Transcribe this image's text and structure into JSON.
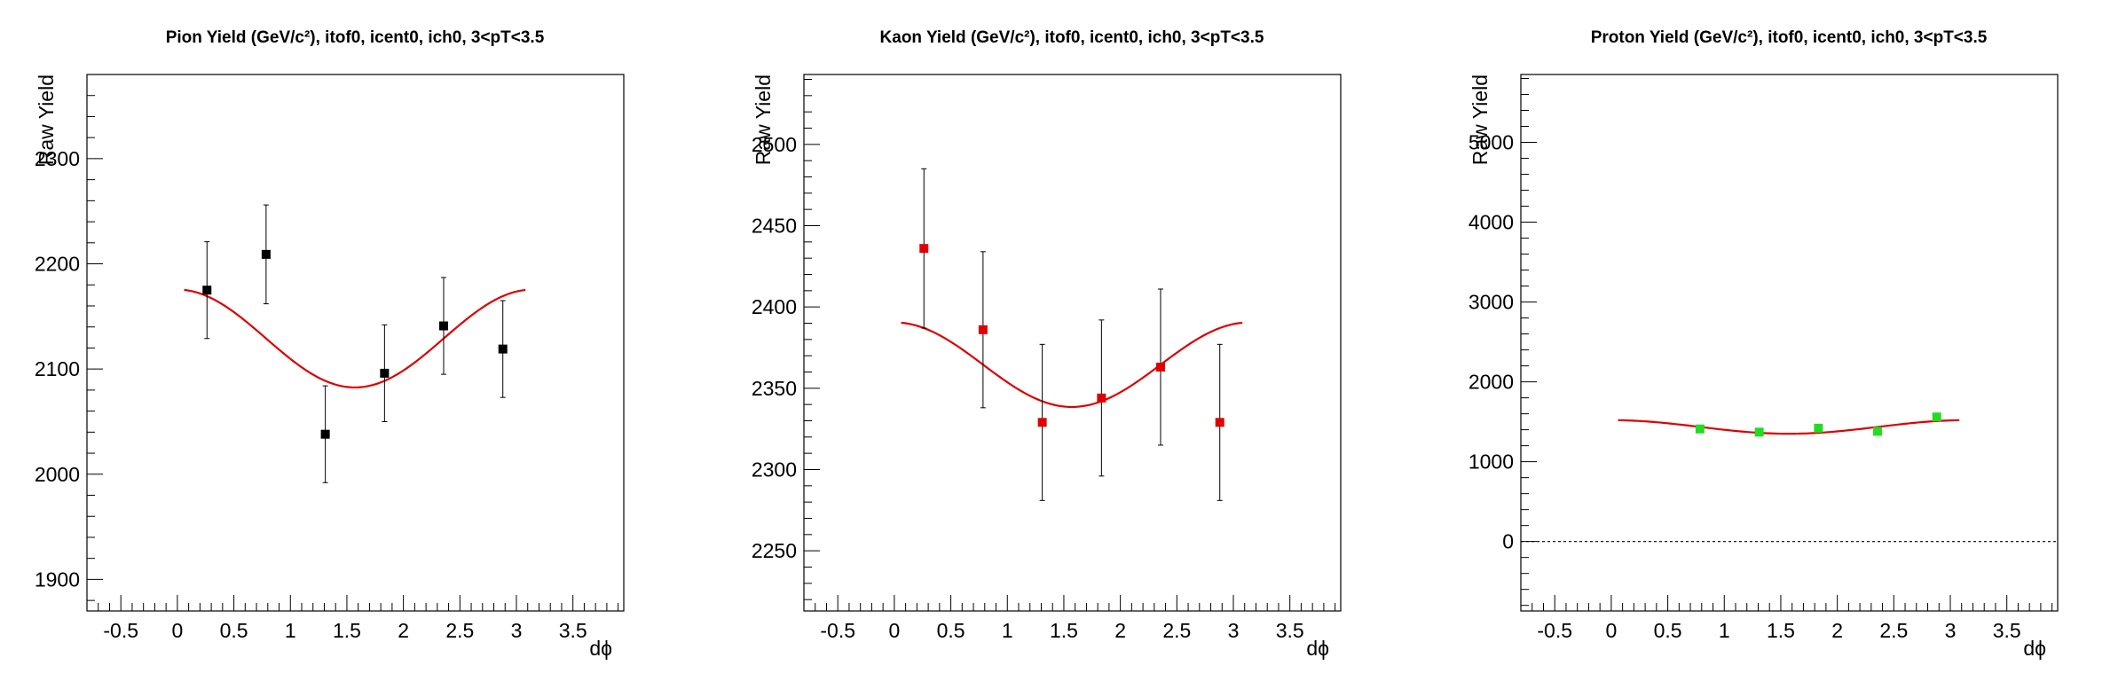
{
  "colors": {
    "pion": "#000000",
    "kaon": "#e00000",
    "proton": "#22dd22",
    "fit": "#dd0000",
    "frame": "#000000"
  },
  "chart_data": [
    {
      "type": "scatter",
      "title": "Pion Yield (GeV/c²), itof0, icent0, ich0, 3<pT<3.5",
      "xlabel": "dϕ",
      "ylabel": "Raw Yield",
      "xlim": [
        -0.8,
        3.95
      ],
      "ylim": [
        1870,
        2380
      ],
      "xticks": [
        -0.5,
        0,
        0.5,
        1,
        1.5,
        2,
        2.5,
        3,
        3.5
      ],
      "xtick_labels": [
        "-0.5",
        "0",
        "0.5",
        "1",
        "1.5",
        "2",
        "2.5",
        "3",
        "3.5"
      ],
      "yticks": [
        1900,
        2000,
        2100,
        2200,
        2300
      ],
      "ytick_labels": [
        "1900",
        "2000",
        "2100",
        "2200",
        "2300"
      ],
      "zero_line": false,
      "grid": false,
      "series": [
        {
          "marker_color": "#000000",
          "x": [
            0.262,
            0.785,
            1.309,
            1.833,
            2.356,
            2.88
          ],
          "y": [
            2175,
            2209,
            2038,
            2096,
            2141,
            2119
          ],
          "yerr": [
            46,
            47,
            46,
            46,
            46,
            46
          ]
        }
      ],
      "fit": {
        "function": "A + B*cos(2x)",
        "A": 2129,
        "B": 46.5,
        "x_range": [
          0.06,
          3.08
        ],
        "color": "#dd0000"
      }
    },
    {
      "type": "scatter",
      "title": "Kaon Yield (GeV/c²), itof0, icent0, ich0, 3<pT<3.5",
      "xlabel": "dϕ",
      "ylabel": "Raw Yield",
      "xlim": [
        -0.8,
        3.95
      ],
      "ylim": [
        2213,
        2543
      ],
      "xticks": [
        -0.5,
        0,
        0.5,
        1,
        1.5,
        2,
        2.5,
        3,
        3.5
      ],
      "xtick_labels": [
        "-0.5",
        "0",
        "0.5",
        "1",
        "1.5",
        "2",
        "2.5",
        "3",
        "3.5"
      ],
      "yticks": [
        2250,
        2300,
        2350,
        2400,
        2450,
        2500
      ],
      "ytick_labels": [
        "2250",
        "2300",
        "2350",
        "2400",
        "2450",
        "2500"
      ],
      "zero_line": false,
      "grid": false,
      "series": [
        {
          "marker_color": "#e00000",
          "x": [
            0.262,
            0.785,
            1.309,
            1.833,
            2.356,
            2.88
          ],
          "y": [
            2436,
            2386,
            2329,
            2344,
            2363,
            2329
          ],
          "yerr": [
            49,
            48,
            48,
            48,
            48,
            48
          ]
        }
      ],
      "fit": {
        "function": "A + B*cos(2x)",
        "A": 2364.5,
        "B": 26,
        "x_range": [
          0.06,
          3.08
        ],
        "color": "#dd0000"
      }
    },
    {
      "type": "scatter",
      "title": "Proton Yield (GeV/c²), itof0, icent0, ich0, 3<pT<3.5",
      "xlabel": "dϕ",
      "ylabel": "Raw Yield",
      "xlim": [
        -0.8,
        3.95
      ],
      "ylim": [
        -870,
        5850
      ],
      "xticks": [
        -0.5,
        0,
        0.5,
        1,
        1.5,
        2,
        2.5,
        3,
        3.5
      ],
      "xtick_labels": [
        "-0.5",
        "0",
        "0.5",
        "1",
        "1.5",
        "2",
        "2.5",
        "3",
        "3.5"
      ],
      "yticks": [
        0,
        1000,
        2000,
        3000,
        4000,
        5000
      ],
      "ytick_labels": [
        "0",
        "1000",
        "2000",
        "3000",
        "4000",
        "5000"
      ],
      "zero_line": true,
      "grid": false,
      "series": [
        {
          "marker_color": "#22dd22",
          "x": [
            0.785,
            1.309,
            1.833,
            2.356,
            2.88
          ],
          "y": [
            1410,
            1370,
            1420,
            1380,
            1560
          ],
          "yerr": [
            0,
            0,
            0,
            0,
            0
          ]
        }
      ],
      "fit": {
        "function": "A + B*cos(2x)",
        "A": 1435,
        "B": 85,
        "x_range": [
          0.06,
          3.08
        ],
        "color": "#dd0000"
      }
    }
  ]
}
